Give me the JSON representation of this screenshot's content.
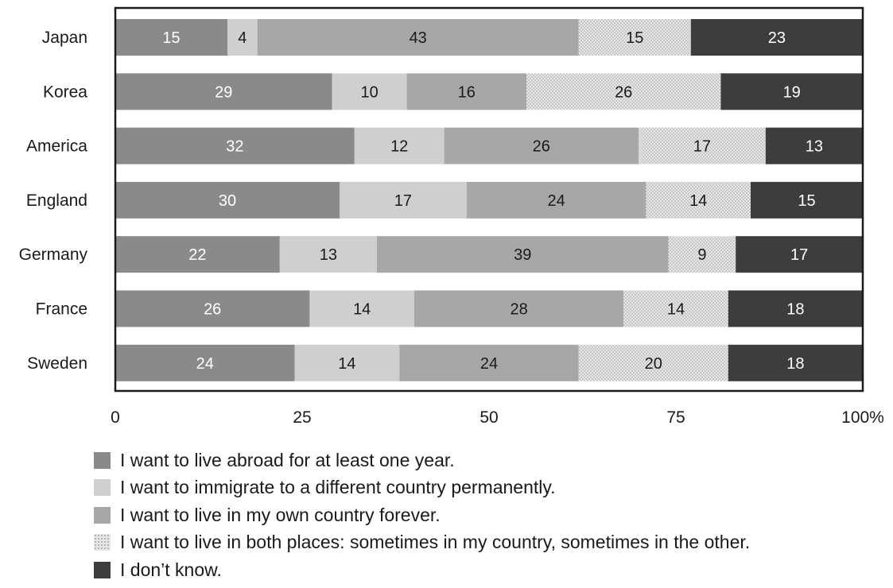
{
  "chart_data": {
    "type": "bar",
    "orientation": "horizontal",
    "stacked": true,
    "categories": [
      "Japan",
      "Korea",
      "America",
      "England",
      "Germany",
      "France",
      "Sweden"
    ],
    "series": [
      {
        "name": "I want to live abroad for at least one year.",
        "values": [
          15,
          29,
          32,
          30,
          22,
          26,
          24
        ],
        "color": "#8a8a8a",
        "label_color": "#ffffff",
        "pattern": "solid"
      },
      {
        "name": "I want to immigrate to a different country permanently.",
        "values": [
          4,
          10,
          12,
          17,
          13,
          14,
          14
        ],
        "color": "#cfcfcf",
        "label_color": "#1a1a1a",
        "pattern": "solid"
      },
      {
        "name": "I want to live in my own country forever.",
        "values": [
          43,
          16,
          26,
          24,
          39,
          28,
          24
        ],
        "color": "#a7a7a7",
        "label_color": "#1a1a1a",
        "pattern": "solid"
      },
      {
        "name": "I want to live in both places: sometimes in my country, sometimes in the other.",
        "values": [
          15,
          26,
          17,
          14,
          9,
          14,
          20
        ],
        "color": "#e6e6e6",
        "label_color": "#1a1a1a",
        "pattern": "dots"
      },
      {
        "name": "I don’t know.",
        "values": [
          23,
          19,
          13,
          15,
          17,
          18,
          18
        ],
        "color": "#3d3d3d",
        "label_color": "#ffffff",
        "pattern": "solid"
      }
    ],
    "x_ticks": [
      "0",
      "25",
      "50",
      "75",
      "100%"
    ],
    "x_tick_values": [
      0,
      25,
      50,
      75,
      100
    ],
    "xlim": [
      0,
      100
    ],
    "title": "",
    "xlabel": "",
    "ylabel": "",
    "grid": false,
    "legend_position": "bottom"
  }
}
